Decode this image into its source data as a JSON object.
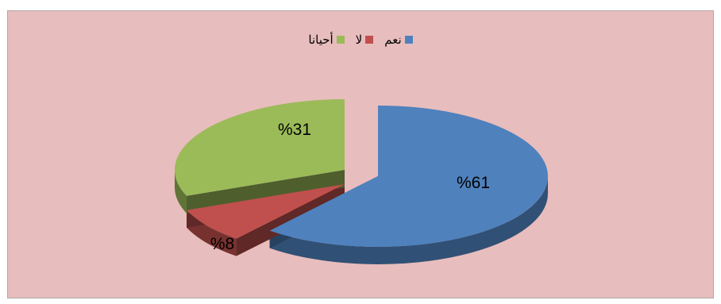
{
  "colors": {
    "background": "#e8bdbd",
    "frame_border": "#b0a8a8"
  },
  "chart_data": {
    "type": "pie",
    "three_d": true,
    "exploded": true,
    "legend_position": "top",
    "categories": [
      "نعم",
      "لا",
      "أحيانا"
    ],
    "values": [
      61,
      8,
      31
    ],
    "value_labels": [
      "%61",
      "%8",
      "%31"
    ],
    "colors": [
      "#4f81bd",
      "#c0504d",
      "#9bbb59"
    ]
  }
}
